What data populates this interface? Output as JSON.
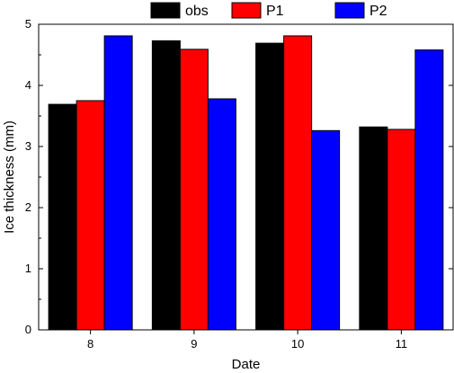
{
  "chart_data": {
    "type": "bar",
    "title": "",
    "xlabel": "Date",
    "ylabel": "Ice thickness (mm)",
    "categories": [
      "8",
      "9",
      "10",
      "11"
    ],
    "ylim": [
      0,
      5
    ],
    "yticks": [
      0,
      1,
      2,
      3,
      4,
      5
    ],
    "grid": false,
    "legend_position": "top",
    "series": [
      {
        "name": "obs",
        "color": "#000000",
        "values": [
          3.69,
          4.73,
          4.69,
          3.32
        ]
      },
      {
        "name": "P1",
        "color": "#ff0000",
        "values": [
          3.75,
          4.59,
          4.81,
          3.28
        ]
      },
      {
        "name": "P2",
        "color": "#0000ff",
        "values": [
          4.81,
          3.78,
          3.26,
          4.58
        ]
      }
    ]
  }
}
